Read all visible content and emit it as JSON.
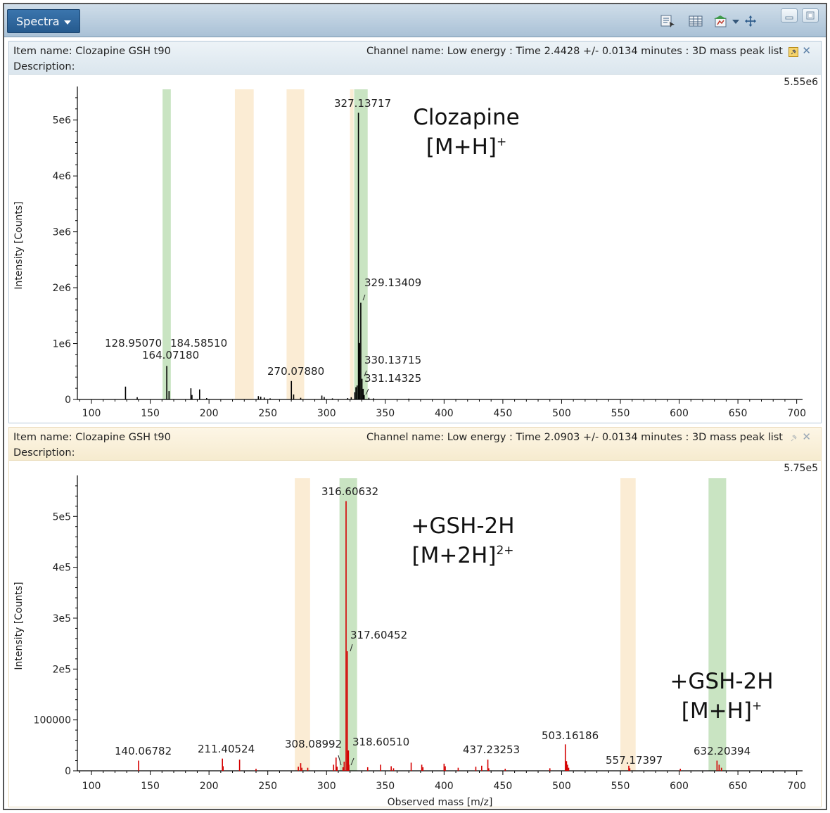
{
  "toolbar": {
    "menu_label": "Spectra",
    "icons": [
      "report-icon",
      "table-icon",
      "chart-type-icon",
      "dropdown-icon",
      "pan-move-icon"
    ],
    "window_buttons": [
      "minimize-icon",
      "restore-icon"
    ]
  },
  "panels": [
    {
      "item_name": "Item name: Clozapine GSH t90",
      "description": "Description:",
      "channel": "Channel name: Low energy : Time 2.4428 +/- 0.0134 minutes : 3D mass peak list",
      "max_label": "5.55e6",
      "pin_active": true
    },
    {
      "item_name": "Item name: Clozapine GSH t90",
      "description": "Description:",
      "channel": "Channel name: Low energy : Time 2.0903 +/- 0.0134 minutes : 3D mass peak list",
      "max_label": "5.75e5",
      "pin_active": false
    }
  ],
  "chart_data": [
    {
      "type": "bar",
      "style": "mass-spectrum stick plot",
      "color": "#000000",
      "xlabel": "",
      "ylabel": "Intensity [Counts]",
      "xlim": [
        88,
        705
      ],
      "ylim": [
        0,
        5550000
      ],
      "x_ticks": [
        100,
        150,
        200,
        250,
        300,
        350,
        400,
        450,
        500,
        550,
        600,
        650,
        700
      ],
      "y_ticks": [
        {
          "v": 0,
          "label": "0"
        },
        {
          "v": 1000000,
          "label": "1e6"
        },
        {
          "v": 2000000,
          "label": "2e6"
        },
        {
          "v": 3000000,
          "label": "3e6"
        },
        {
          "v": 4000000,
          "label": "4e6"
        },
        {
          "v": 5000000,
          "label": "5e6"
        }
      ],
      "peaks": [
        [
          128.9507,
          230000
        ],
        [
          138.9,
          40000
        ],
        [
          164.0718,
          600000
        ],
        [
          166.0,
          150000
        ],
        [
          184.5851,
          200000
        ],
        [
          185.5,
          80000
        ],
        [
          192.0,
          180000
        ],
        [
          198.0,
          25000
        ],
        [
          242.0,
          60000
        ],
        [
          244.0,
          50000
        ],
        [
          247.0,
          35000
        ],
        [
          252.0,
          20000
        ],
        [
          270.0788,
          330000
        ],
        [
          272.0,
          90000
        ],
        [
          278.0,
          30000
        ],
        [
          296.0,
          70000
        ],
        [
          298.0,
          45000
        ],
        [
          305.0,
          20000
        ],
        [
          318.0,
          25000
        ],
        [
          321.0,
          40000
        ],
        [
          324.0,
          130000
        ],
        [
          325.0,
          220000
        ],
        [
          326.0,
          250000
        ],
        [
          327.13717,
          5130000
        ],
        [
          328.13,
          1010000
        ],
        [
          329.13409,
          1730000
        ],
        [
          330.13715,
          370000
        ],
        [
          331.14325,
          190000
        ],
        [
          332.0,
          80000
        ],
        [
          336.0,
          30000
        ],
        [
          340.0,
          20000
        ],
        [
          370.0,
          15000
        ]
      ],
      "peak_labels": [
        {
          "x": 128.9507,
          "text": "128.95070"
        },
        {
          "x": 164.0718,
          "text": "164.07180"
        },
        {
          "x": 184.5851,
          "text": "184.58510"
        },
        {
          "x": 270.0788,
          "text": "270.07880"
        },
        {
          "x": 327.13717,
          "text": "327.13717"
        },
        {
          "x": 329.13409,
          "text": "329.13409"
        },
        {
          "x": 330.13715,
          "text": "330.13715"
        },
        {
          "x": 331.14325,
          "text": "331.14325"
        }
      ],
      "highlights": [
        {
          "x0": 160.5,
          "x1": 167.5,
          "color": "#c9e4c2"
        },
        {
          "x0": 222,
          "x1": 238,
          "color": "#fbecd4"
        },
        {
          "x0": 266,
          "x1": 281,
          "color": "#fbecd4"
        },
        {
          "x0": 320,
          "x1": 323,
          "color": "#fbecd4"
        },
        {
          "x0": 323.5,
          "x1": 335,
          "color": "#c9e4c2"
        }
      ],
      "annotations": [
        {
          "text": "Clozapine",
          "sup": ""
        },
        {
          "text": "[M+H]",
          "sup": "+"
        }
      ]
    },
    {
      "type": "bar",
      "style": "mass-spectrum stick plot",
      "color": "#d40000",
      "xlabel": "Observed mass [m/z]",
      "ylabel": "Intensity [Counts]",
      "xlim": [
        88,
        705
      ],
      "ylim": [
        0,
        575000
      ],
      "x_ticks": [
        100,
        150,
        200,
        250,
        300,
        350,
        400,
        450,
        500,
        550,
        600,
        650,
        700
      ],
      "y_ticks": [
        {
          "v": 0,
          "label": "0"
        },
        {
          "v": 100000,
          "label": "100000"
        },
        {
          "v": 200000,
          "label": "2e5"
        },
        {
          "v": 300000,
          "label": "3e5"
        },
        {
          "v": 400000,
          "label": "4e5"
        },
        {
          "v": 500000,
          "label": "5e5"
        }
      ],
      "peaks": [
        [
          140.06782,
          20000
        ],
        [
          211.40524,
          24000
        ],
        [
          212.0,
          9000
        ],
        [
          226.0,
          22000
        ],
        [
          240.0,
          4000
        ],
        [
          276.0,
          8000
        ],
        [
          278.0,
          15000
        ],
        [
          279.0,
          6000
        ],
        [
          284.0,
          6000
        ],
        [
          306.0,
          12000
        ],
        [
          308.08992,
          26000
        ],
        [
          309.0,
          8000
        ],
        [
          314.0,
          7000
        ],
        [
          315.0,
          18000
        ],
        [
          316.60632,
          530000
        ],
        [
          317.60452,
          235000
        ],
        [
          318.6051,
          40000
        ],
        [
          319.0,
          12000
        ],
        [
          335.0,
          7000
        ],
        [
          346.0,
          12000
        ],
        [
          355.0,
          9000
        ],
        [
          357.0,
          5000
        ],
        [
          372.0,
          16000
        ],
        [
          381.0,
          12000
        ],
        [
          382.0,
          7000
        ],
        [
          400.0,
          14000
        ],
        [
          401.0,
          9000
        ],
        [
          412.0,
          6000
        ],
        [
          427.0,
          8000
        ],
        [
          432.0,
          10000
        ],
        [
          437.23253,
          22000
        ],
        [
          438.0,
          5000
        ],
        [
          452.0,
          4000
        ],
        [
          490.0,
          5000
        ],
        [
          503.16186,
          52000
        ],
        [
          504.16,
          19000
        ],
        [
          505.0,
          12000
        ],
        [
          506.0,
          6000
        ],
        [
          557.17397,
          10000
        ],
        [
          558.0,
          5000
        ],
        [
          601.0,
          4000
        ],
        [
          632.20394,
          20000
        ],
        [
          634.0,
          12000
        ],
        [
          636.0,
          6000
        ]
      ],
      "peak_labels": [
        {
          "x": 140.06782,
          "text": "140.06782"
        },
        {
          "x": 211.40524,
          "text": "211.40524"
        },
        {
          "x": 308.08992,
          "text": "308.08992"
        },
        {
          "x": 316.60632,
          "text": "316.60632"
        },
        {
          "x": 317.60452,
          "text": "317.60452"
        },
        {
          "x": 318.6051,
          "text": "318.60510"
        },
        {
          "x": 437.23253,
          "text": "437.23253"
        },
        {
          "x": 503.16186,
          "text": "503.16186"
        },
        {
          "x": 557.17397,
          "text": "557.17397"
        },
        {
          "x": 632.20394,
          "text": "632.20394"
        }
      ],
      "highlights": [
        {
          "x0": 273,
          "x1": 286,
          "color": "#fbecd4"
        },
        {
          "x0": 311,
          "x1": 326,
          "color": "#c9e4c2"
        },
        {
          "x0": 550,
          "x1": 563,
          "color": "#fbecd4"
        },
        {
          "x0": 625,
          "x1": 640,
          "color": "#c9e4c2"
        }
      ],
      "annotations": [
        {
          "text": "+GSH-2H",
          "sup": ""
        },
        {
          "text": "[M+2H]",
          "sup": "2+"
        },
        {
          "text": "+GSH-2H",
          "sup": ""
        },
        {
          "text": "[M+H]",
          "sup": "+"
        }
      ]
    }
  ]
}
